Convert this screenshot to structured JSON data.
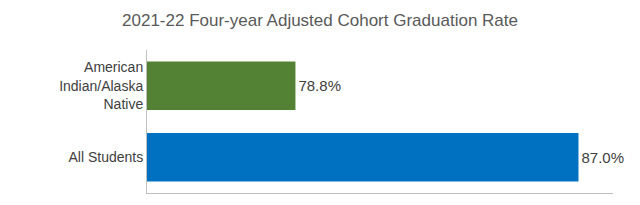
{
  "chart_data": {
    "type": "bar",
    "title": "2021-22 Four-year Adjusted Cohort Graduation Rate",
    "orientation": "horizontal",
    "categories": [
      "American Indian/Alaska Native",
      "All Students"
    ],
    "values": [
      78.8,
      87.0
    ],
    "value_labels": [
      "78.8%",
      "87.0%"
    ],
    "colors": [
      "#548235",
      "#0070c0"
    ],
    "xlim": [
      74.5,
      88
    ],
    "data_labels": true,
    "tick_labels": "y",
    "grid": false
  }
}
